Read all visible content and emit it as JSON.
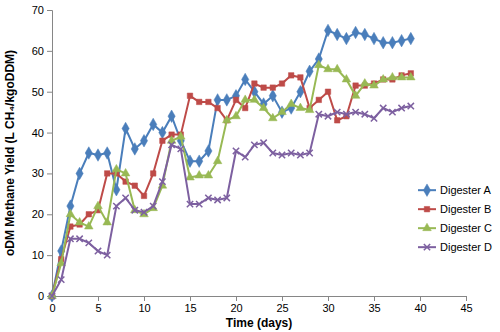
{
  "chart_data": {
    "type": "line",
    "x_label": "Time (days)",
    "y_label": "oDM Methane Yield (L CH₄/kgoDDM)",
    "x": [
      0,
      1,
      2,
      3,
      4,
      5,
      6,
      7,
      8,
      9,
      10,
      11,
      12,
      13,
      14,
      15,
      16,
      17,
      18,
      19,
      20,
      21,
      22,
      23,
      24,
      25,
      26,
      27,
      28,
      29,
      30,
      31,
      32,
      33,
      34,
      35,
      36,
      37,
      38,
      39
    ],
    "series": [
      {
        "name": "Digester A",
        "color": "#4a7ebb",
        "marker": "diamond",
        "values": [
          0,
          11,
          22,
          30,
          35,
          34.5,
          35,
          26,
          41,
          36,
          38,
          42,
          40,
          44,
          38,
          33,
          33,
          35.5,
          48,
          48,
          49,
          53,
          50,
          47,
          49,
          45,
          46,
          50,
          55,
          58,
          65,
          64,
          63,
          64.5,
          64,
          63,
          62,
          62,
          62.5,
          63
        ]
      },
      {
        "name": "Digester B",
        "color": "#be4b48",
        "marker": "square",
        "values": [
          0,
          9,
          17,
          17.5,
          20,
          21,
          30,
          30,
          28,
          27,
          24.5,
          30,
          38,
          39.5,
          39.5,
          49,
          47.5,
          47.5,
          46,
          43,
          48,
          46,
          52,
          51,
          51,
          52,
          54,
          53.5,
          46,
          48,
          50,
          43,
          44,
          51.5,
          51.5,
          52,
          53,
          53,
          54,
          54.5
        ]
      },
      {
        "name": "Digester C",
        "color": "#98b954",
        "marker": "triangle",
        "values": [
          0,
          8,
          20,
          18,
          17,
          22,
          18,
          31,
          30,
          21,
          20,
          21.5,
          27,
          38,
          39,
          29,
          29.5,
          29.5,
          33,
          43,
          44,
          48,
          48,
          46,
          43.5,
          45,
          47,
          46,
          45.5,
          56.5,
          55.5,
          55.5,
          53,
          49,
          52,
          51.5,
          53,
          53.5,
          53.5,
          53.5
        ]
      },
      {
        "name": "Digester D",
        "color": "#7d60a0",
        "marker": "x",
        "values": [
          0,
          4,
          14,
          14,
          13,
          11,
          10,
          22,
          24,
          21,
          20.5,
          22,
          28,
          37,
          36,
          22.5,
          22.5,
          24,
          23.5,
          24,
          35.5,
          34,
          37,
          37.5,
          35,
          34.5,
          35,
          34.5,
          35,
          44.5,
          44,
          45,
          44.5,
          45,
          44.5,
          43.5,
          46,
          45,
          46,
          46.5
        ]
      }
    ],
    "xlim": [
      0,
      45
    ],
    "xticks": [
      0,
      5,
      10,
      15,
      20,
      25,
      30,
      35,
      40,
      45
    ],
    "ylim": [
      0,
      70
    ],
    "yticks": [
      0,
      10,
      20,
      30,
      40,
      50,
      60,
      70
    ],
    "grid": false,
    "legend": "right"
  }
}
